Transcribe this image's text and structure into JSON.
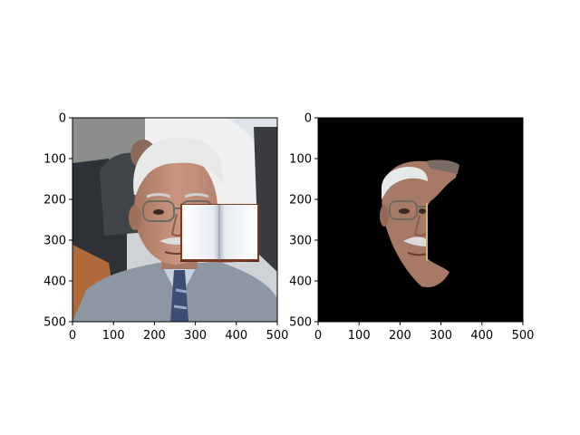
{
  "chart_data": [
    {
      "type": "image",
      "content": "photo of a grey-haired man in glasses and a grey suit; an open book graphic overlays the lower right of his face",
      "xlim": [
        0,
        500
      ],
      "ylim": [
        500,
        0
      ],
      "xticks": [
        0,
        100,
        200,
        300,
        400,
        500
      ],
      "yticks": [
        0,
        100,
        200,
        300,
        400,
        500
      ],
      "xtick_labels": [
        "0",
        "100",
        "200",
        "300",
        "400",
        "500"
      ],
      "ytick_labels": [
        "0",
        "100",
        "200",
        "300",
        "400",
        "500"
      ],
      "overlay": {
        "name": "book",
        "x_range": [
          262,
          455
        ],
        "y_range": [
          210,
          355
        ]
      }
    },
    {
      "type": "image",
      "content": "segmented face region on black background; right portion cut away where the book occluded it",
      "xlim": [
        0,
        500
      ],
      "ylim": [
        500,
        0
      ],
      "xticks": [
        0,
        100,
        200,
        300,
        400,
        500
      ],
      "yticks": [
        0,
        100,
        200,
        300,
        400,
        500
      ],
      "xtick_labels": [
        "0",
        "100",
        "200",
        "300",
        "400",
        "500"
      ],
      "ytick_labels": [
        "0",
        "100",
        "200",
        "300",
        "400",
        "500"
      ],
      "background_color": "#000000"
    }
  ]
}
